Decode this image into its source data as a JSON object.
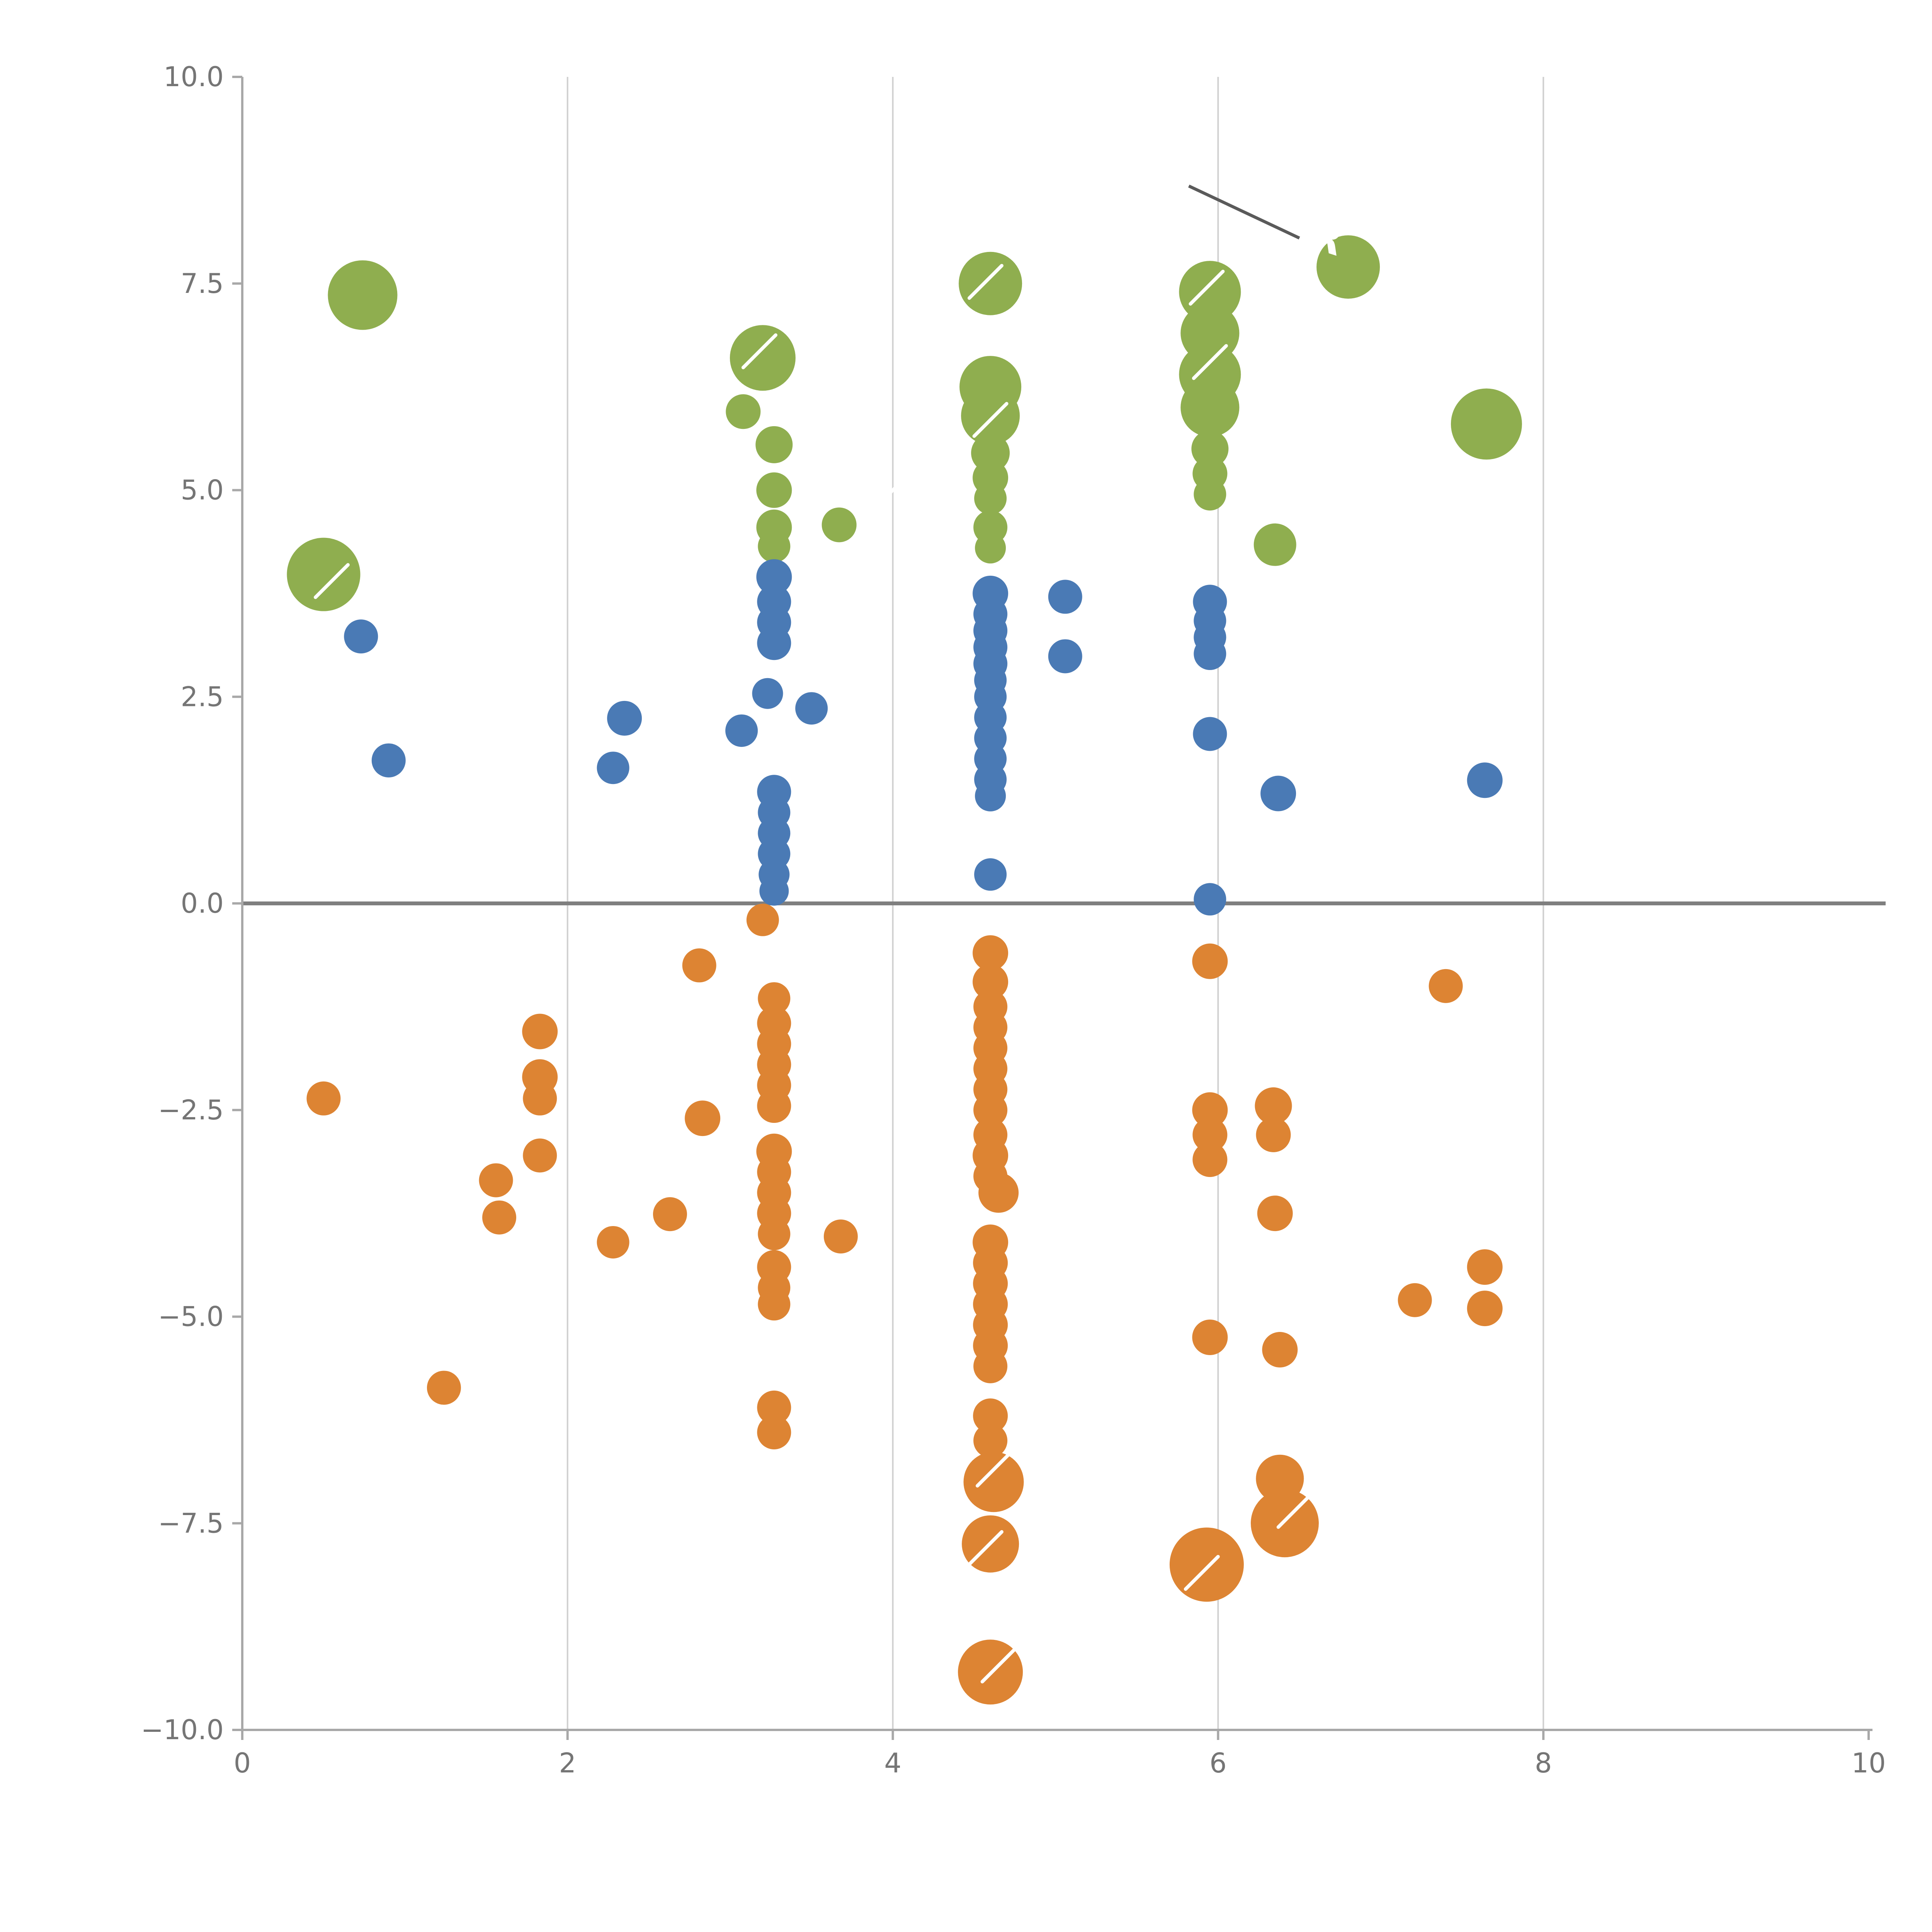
{
  "chart_data": {
    "type": "scatter",
    "title": "",
    "xlabel": "",
    "ylabel": "",
    "xlim": [
      0,
      10
    ],
    "ylim": [
      -10,
      10
    ],
    "x_ticks": [
      0,
      2,
      4,
      6,
      8,
      10
    ],
    "x_tick_labels": [
      "0",
      "2",
      "4",
      "6",
      "8",
      "10"
    ],
    "y_ticks": [
      -10,
      -7.5,
      -5,
      -2.5,
      0,
      2.5,
      5,
      7.5,
      10
    ],
    "y_tick_labels": [
      "−10.0",
      "−7.5",
      "−5.0",
      "−2.5",
      "0.0",
      "2.5",
      "5.0",
      "7.5",
      "10.0"
    ],
    "grid_x": [
      2,
      4,
      6,
      8
    ],
    "grid_on": true,
    "zero_line_y": 0,
    "legend": "none",
    "colors": {
      "green": "#8fae4f",
      "blue": "#4a7ab5",
      "orange": "#dd8433",
      "gridline": "#d0d0d0",
      "spine": "#a8a8a8",
      "tick_label": "#757575",
      "zero_line": "#7f7f7f",
      "annotation_line": "#5a5a5a",
      "annotation_text": "#ffffff"
    },
    "series": [
      {
        "name": "green",
        "color": "#8fae4f",
        "points": [
          [
            0.74,
            7.36,
            90
          ],
          [
            0.5,
            3.98,
            95
          ],
          [
            3.2,
            6.6,
            85
          ],
          [
            3.08,
            5.95,
            45
          ],
          [
            3.27,
            5.55,
            48
          ],
          [
            3.27,
            5.0,
            46
          ],
          [
            3.27,
            4.55,
            46
          ],
          [
            3.27,
            4.32,
            42
          ],
          [
            3.67,
            4.58,
            45
          ],
          [
            4.6,
            7.5,
            82
          ],
          [
            4.6,
            6.25,
            80
          ],
          [
            4.6,
            5.9,
            76
          ],
          [
            4.6,
            5.45,
            50
          ],
          [
            4.6,
            5.15,
            46
          ],
          [
            4.6,
            4.9,
            42
          ],
          [
            4.6,
            4.55,
            44
          ],
          [
            4.6,
            4.3,
            40
          ],
          [
            5.95,
            7.4,
            80
          ],
          [
            5.95,
            6.9,
            76
          ],
          [
            5.95,
            6.4,
            80
          ],
          [
            5.95,
            6.0,
            76
          ],
          [
            5.95,
            5.5,
            48
          ],
          [
            5.95,
            5.2,
            45
          ],
          [
            5.95,
            4.95,
            42
          ],
          [
            6.35,
            4.34,
            55
          ],
          [
            6.8,
            7.7,
            82
          ],
          [
            7.65,
            5.8,
            92
          ]
        ]
      },
      {
        "name": "blue",
        "color": "#4a7ab5",
        "points": [
          [
            0.73,
            3.23,
            44
          ],
          [
            0.9,
            1.73,
            44
          ],
          [
            2.35,
            2.24,
            45
          ],
          [
            2.28,
            1.64,
            42
          ],
          [
            3.07,
            2.09,
            42
          ],
          [
            3.23,
            2.54,
            40
          ],
          [
            3.27,
            3.95,
            46
          ],
          [
            3.27,
            3.65,
            44
          ],
          [
            3.27,
            3.4,
            44
          ],
          [
            3.27,
            3.15,
            44
          ],
          [
            3.27,
            1.35,
            44
          ],
          [
            3.27,
            1.1,
            42
          ],
          [
            3.27,
            0.85,
            42
          ],
          [
            3.27,
            0.6,
            42
          ],
          [
            3.27,
            0.35,
            40
          ],
          [
            3.27,
            0.15,
            38
          ],
          [
            3.5,
            2.36,
            42
          ],
          [
            4.6,
            3.75,
            46
          ],
          [
            4.6,
            3.5,
            44
          ],
          [
            4.6,
            3.3,
            44
          ],
          [
            4.6,
            3.1,
            44
          ],
          [
            4.6,
            2.9,
            44
          ],
          [
            4.6,
            2.7,
            42
          ],
          [
            4.6,
            2.5,
            42
          ],
          [
            4.6,
            2.25,
            42
          ],
          [
            4.6,
            2.0,
            42
          ],
          [
            4.6,
            1.75,
            42
          ],
          [
            4.6,
            1.5,
            42
          ],
          [
            4.6,
            1.3,
            40
          ],
          [
            4.6,
            0.35,
            42
          ],
          [
            5.06,
            3.71,
            44
          ],
          [
            5.06,
            2.99,
            44
          ],
          [
            5.95,
            3.65,
            44
          ],
          [
            5.95,
            3.42,
            42
          ],
          [
            5.95,
            3.22,
            42
          ],
          [
            5.95,
            3.02,
            42
          ],
          [
            5.95,
            2.05,
            44
          ],
          [
            5.95,
            0.05,
            42
          ],
          [
            6.37,
            1.33,
            46
          ],
          [
            7.64,
            1.49,
            46
          ]
        ]
      },
      {
        "name": "orange",
        "color": "#dd8433",
        "points": [
          [
            0.5,
            -2.36,
            44
          ],
          [
            1.24,
            -5.86,
            44
          ],
          [
            1.56,
            -3.35,
            44
          ],
          [
            1.58,
            -3.8,
            44
          ],
          [
            1.83,
            -1.55,
            46
          ],
          [
            1.83,
            -2.1,
            46
          ],
          [
            1.83,
            -2.36,
            44
          ],
          [
            1.83,
            -3.05,
            44
          ],
          [
            2.28,
            -4.1,
            42
          ],
          [
            2.63,
            -3.76,
            44
          ],
          [
            2.81,
            -0.75,
            44
          ],
          [
            2.83,
            -2.6,
            46
          ],
          [
            3.2,
            -0.2,
            42
          ],
          [
            3.27,
            -1.15,
            42
          ],
          [
            3.27,
            -1.45,
            44
          ],
          [
            3.27,
            -1.7,
            44
          ],
          [
            3.27,
            -1.95,
            44
          ],
          [
            3.27,
            -2.2,
            44
          ],
          [
            3.27,
            -2.45,
            44
          ],
          [
            3.27,
            -3.0,
            46
          ],
          [
            3.27,
            -3.25,
            44
          ],
          [
            3.27,
            -3.5,
            44
          ],
          [
            3.27,
            -3.75,
            44
          ],
          [
            3.27,
            -4.0,
            42
          ],
          [
            3.27,
            -4.4,
            44
          ],
          [
            3.27,
            -4.65,
            42
          ],
          [
            3.27,
            -4.85,
            42
          ],
          [
            3.27,
            -6.1,
            44
          ],
          [
            3.27,
            -6.4,
            44
          ],
          [
            3.68,
            -4.03,
            44
          ],
          [
            4.6,
            -0.6,
            46
          ],
          [
            4.6,
            -0.95,
            46
          ],
          [
            4.6,
            -1.25,
            44
          ],
          [
            4.6,
            -1.5,
            44
          ],
          [
            4.6,
            -1.75,
            44
          ],
          [
            4.6,
            -2.0,
            44
          ],
          [
            4.6,
            -2.25,
            44
          ],
          [
            4.6,
            -2.5,
            44
          ],
          [
            4.6,
            -2.8,
            44
          ],
          [
            4.6,
            -3.05,
            46
          ],
          [
            4.6,
            -3.3,
            44
          ],
          [
            4.65,
            -3.5,
            52
          ],
          [
            4.6,
            -4.1,
            46
          ],
          [
            4.6,
            -4.35,
            45
          ],
          [
            4.6,
            -4.6,
            45
          ],
          [
            4.6,
            -4.85,
            45
          ],
          [
            4.6,
            -5.1,
            45
          ],
          [
            4.6,
            -5.35,
            45
          ],
          [
            4.6,
            -5.6,
            44
          ],
          [
            4.6,
            -6.2,
            45
          ],
          [
            4.6,
            -6.5,
            44
          ],
          [
            4.62,
            -7.0,
            78
          ],
          [
            4.6,
            -7.75,
            74
          ],
          [
            4.6,
            -9.3,
            84
          ],
          [
            5.95,
            -0.7,
            46
          ],
          [
            5.95,
            -2.5,
            46
          ],
          [
            5.95,
            -2.8,
            45
          ],
          [
            5.95,
            -3.1,
            45
          ],
          [
            5.95,
            -5.25,
            46
          ],
          [
            5.93,
            -8.0,
            96
          ],
          [
            6.34,
            -2.45,
            48
          ],
          [
            6.34,
            -2.8,
            45
          ],
          [
            6.35,
            -3.75,
            46
          ],
          [
            6.38,
            -5.4,
            46
          ],
          [
            6.38,
            -6.96,
            62
          ],
          [
            6.41,
            -7.5,
            88
          ],
          [
            7.21,
            -4.8,
            44
          ],
          [
            7.4,
            -1.0,
            44
          ],
          [
            7.64,
            -4.4,
            46
          ],
          [
            7.64,
            -4.9,
            46
          ]
        ]
      }
    ],
    "annotation": {
      "text": "R",
      "text_pos": [
        6.55,
        7.95
      ],
      "text_rotation": 18,
      "line": [
        [
          5.82,
          8.68
        ],
        [
          6.5,
          8.05
        ]
      ]
    },
    "white_marks": [
      [
        0.55,
        3.9
      ],
      [
        3.18,
        6.68
      ],
      [
        4.0,
        5.0
      ],
      [
        4.57,
        7.52
      ],
      [
        4.6,
        5.85
      ],
      [
        5.93,
        7.45
      ],
      [
        5.95,
        6.55
      ],
      [
        4.62,
        -6.85
      ],
      [
        4.57,
        -7.8
      ],
      [
        4.65,
        -9.22
      ],
      [
        5.9,
        -8.1
      ],
      [
        6.47,
        -7.35
      ]
    ]
  }
}
